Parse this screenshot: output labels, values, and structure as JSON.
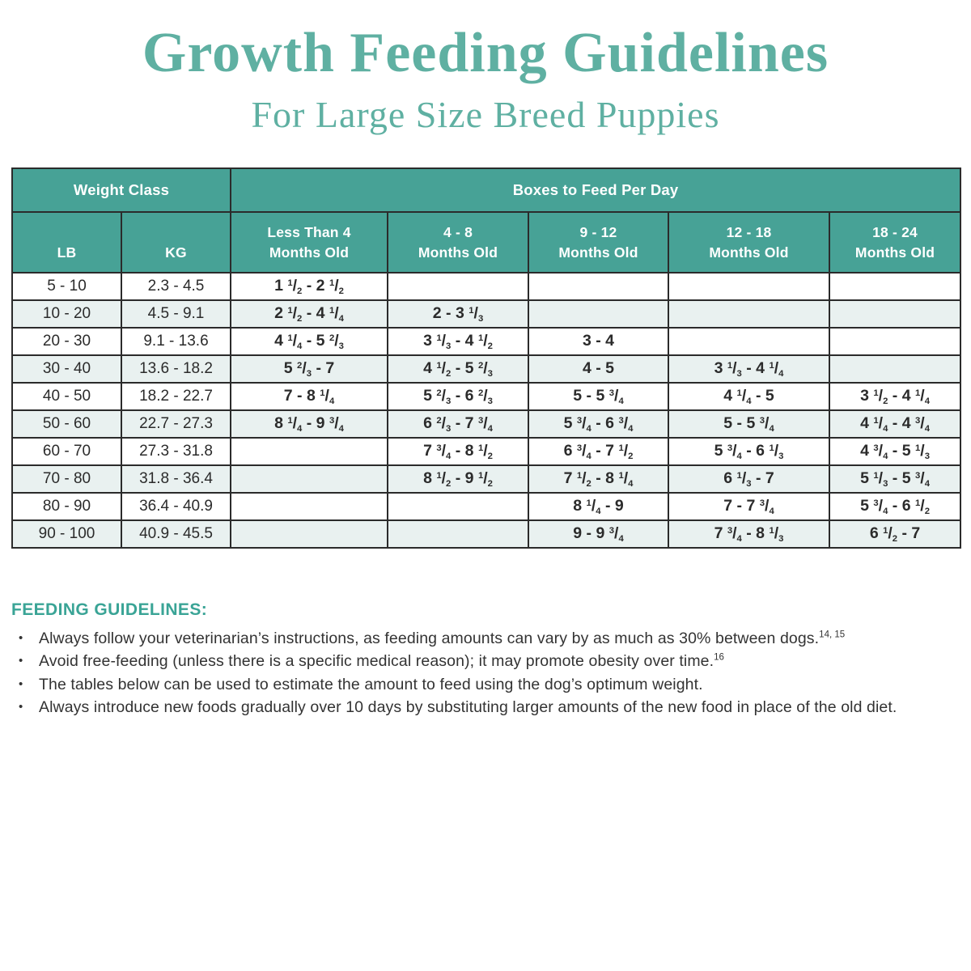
{
  "page": {
    "title": "Growth Feeding Guidelines",
    "subtitle": "For Large Size Breed Puppies"
  },
  "table": {
    "group_headers": {
      "weight_class": "Weight Class",
      "boxes_to_feed": "Boxes to Feed Per Day"
    },
    "columns": [
      {
        "line1": "LB",
        "line2": ""
      },
      {
        "line1": "KG",
        "line2": ""
      },
      {
        "line1": "Less Than 4",
        "line2": "Months Old"
      },
      {
        "line1": "4 - 8",
        "line2": "Months Old"
      },
      {
        "line1": "9 - 12",
        "line2": "Months Old"
      },
      {
        "line1": "12 - 18",
        "line2": "Months Old"
      },
      {
        "line1": "18 - 24",
        "line2": "Months Old"
      }
    ],
    "rows": [
      [
        "5 - 10",
        "2.3 - 4.5",
        "1 1/2 - 2 1/2",
        "",
        "",
        "",
        ""
      ],
      [
        "10 - 20",
        "4.5 - 9.1",
        "2 1/2 - 4 1/4",
        "2 - 3 1/3",
        "",
        "",
        ""
      ],
      [
        "20 - 30",
        "9.1 - 13.6",
        "4 1/4 - 5 2/3",
        "3 1/3 - 4 1/2",
        "3 - 4",
        "",
        ""
      ],
      [
        "30 - 40",
        "13.6 - 18.2",
        "5 2/3 - 7",
        "4 1/2 - 5 2/3",
        "4 - 5",
        "3 1/3 - 4 1/4",
        ""
      ],
      [
        "40 - 50",
        "18.2 - 22.7",
        "7 - 8 1/4",
        "5 2/3 - 6 2/3",
        "5 - 5 3/4",
        "4 1/4 - 5",
        "3 1/2 - 4 1/4"
      ],
      [
        "50 - 60",
        "22.7 - 27.3",
        "8 1/4 - 9 3/4",
        "6 2/3 - 7 3/4",
        "5 3/4 - 6 3/4",
        "5 - 5 3/4",
        "4 1/4 - 4 3/4"
      ],
      [
        "60 - 70",
        "27.3 - 31.8",
        "",
        "7 3/4 - 8 1/2",
        "6 3/4 - 7 1/2",
        "5 3/4 - 6 1/3",
        "4 3/4 - 5 1/3"
      ],
      [
        "70 - 80",
        "31.8 - 36.4",
        "",
        "8 1/2 - 9 1/2",
        "7 1/2 - 8 1/4",
        "6 1/3 - 7",
        "5 1/3 - 5 3/4"
      ],
      [
        "80 - 90",
        "36.4 - 40.9",
        "",
        "",
        "8 1/4 - 9",
        "7 - 7 3/4",
        "5 3/4 - 6 1/2"
      ],
      [
        "90 - 100",
        "40.9 - 45.5",
        "",
        "",
        "9 - 9 3/4",
        "7 3/4 - 8 1/3",
        "6 1/2 - 7"
      ]
    ]
  },
  "guidelines": {
    "heading": "FEEDING GUIDELINES:",
    "bullets": [
      {
        "text": "Always follow your veterinarian’s instructions, as feeding amounts can vary by as much as 30% between dogs.",
        "superscript": "14, 15"
      },
      {
        "text": "Avoid free-feeding (unless there is a specific medical reason); it may promote obesity over time.",
        "superscript": "16"
      },
      {
        "text": "The tables below can be used to estimate the amount to feed using the dog’s optimum weight.",
        "superscript": ""
      },
      {
        "text": "Always introduce new foods gradually over 10 days by substituting larger amounts of the new food in place of the old diet.",
        "superscript": ""
      }
    ]
  },
  "colors": {
    "header_teal": "#47a296",
    "title_teal": "#5fb0a2",
    "heading_teal": "#3aa496",
    "row_alt": "#e9f1f0",
    "border_dark": "#2b2b2b",
    "cell_text": "#2b2b2b",
    "body_text": "#333333"
  }
}
